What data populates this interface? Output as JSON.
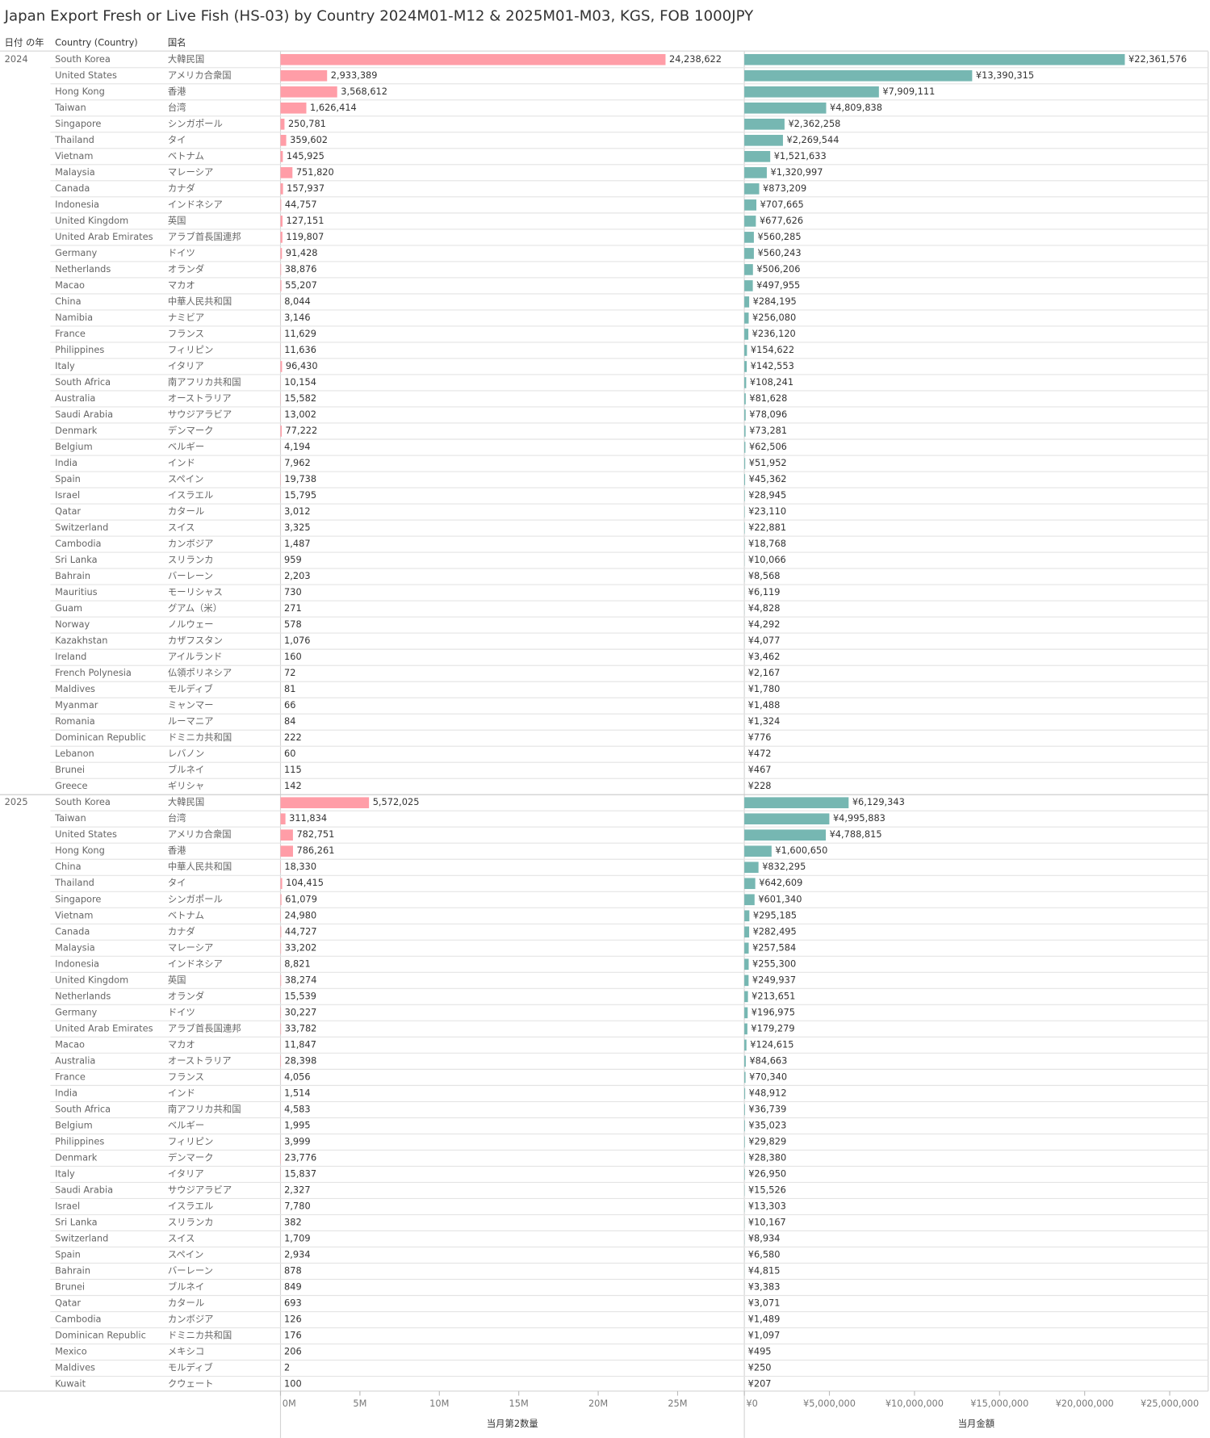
{
  "chart_data": {
    "type": "bar",
    "title": "Japan Export Fresh or Live Fish (HS-03) by Country 2024M01-M12 & 2025M01-M03, KGS, FOB 1000JPY",
    "headers": [
      "日付 の年",
      "Country (Country)",
      "国名"
    ],
    "panels": [
      {
        "title": "当月第2数量",
        "color": "#ff9da7",
        "xlim": [
          0,
          29200000
        ],
        "xticks": [
          {
            "value": 0,
            "label": "0M"
          },
          {
            "value": 5000000,
            "label": "5M"
          },
          {
            "value": 10000000,
            "label": "10M"
          },
          {
            "value": 15000000,
            "label": "15M"
          },
          {
            "value": 20000000,
            "label": "20M"
          },
          {
            "value": 25000000,
            "label": "25M"
          }
        ]
      },
      {
        "title": "当月金額",
        "color": "#76b7b2",
        "xlim": [
          0,
          27260000
        ],
        "xticks": [
          {
            "value": 0,
            "label": "¥0"
          },
          {
            "value": 5000000,
            "label": "¥5,000,000"
          },
          {
            "value": 10000000,
            "label": "¥10,000,000"
          },
          {
            "value": 15000000,
            "label": "¥15,000,000"
          },
          {
            "value": 20000000,
            "label": "¥20,000,000"
          },
          {
            "value": 25000000,
            "label": "¥25,000,000"
          }
        ]
      }
    ],
    "groups": [
      {
        "year": "2024",
        "rows": [
          {
            "country": "South Korea",
            "ja": "大韓民国",
            "qty": 24238622,
            "qty_label": "24,238,622",
            "amt": 22361576,
            "amt_label": "¥22,361,576"
          },
          {
            "country": "United States",
            "ja": "アメリカ合衆国",
            "qty": 2933389,
            "qty_label": "2,933,389",
            "amt": 13390315,
            "amt_label": "¥13,390,315"
          },
          {
            "country": "Hong Kong",
            "ja": "香港",
            "qty": 3568612,
            "qty_label": "3,568,612",
            "amt": 7909111,
            "amt_label": "¥7,909,111"
          },
          {
            "country": "Taiwan",
            "ja": "台湾",
            "qty": 1626414,
            "qty_label": "1,626,414",
            "amt": 4809838,
            "amt_label": "¥4,809,838"
          },
          {
            "country": "Singapore",
            "ja": "シンガポール",
            "qty": 250781,
            "qty_label": "250,781",
            "amt": 2362258,
            "amt_label": "¥2,362,258"
          },
          {
            "country": "Thailand",
            "ja": "タイ",
            "qty": 359602,
            "qty_label": "359,602",
            "amt": 2269544,
            "amt_label": "¥2,269,544"
          },
          {
            "country": "Vietnam",
            "ja": "ベトナム",
            "qty": 145925,
            "qty_label": "145,925",
            "amt": 1521633,
            "amt_label": "¥1,521,633"
          },
          {
            "country": "Malaysia",
            "ja": "マレーシア",
            "qty": 751820,
            "qty_label": "751,820",
            "amt": 1320997,
            "amt_label": "¥1,320,997"
          },
          {
            "country": "Canada",
            "ja": "カナダ",
            "qty": 157937,
            "qty_label": "157,937",
            "amt": 873209,
            "amt_label": "¥873,209"
          },
          {
            "country": "Indonesia",
            "ja": "インドネシア",
            "qty": 44757,
            "qty_label": "44,757",
            "amt": 707665,
            "amt_label": "¥707,665"
          },
          {
            "country": "United Kingdom",
            "ja": "英国",
            "qty": 127151,
            "qty_label": "127,151",
            "amt": 677626,
            "amt_label": "¥677,626"
          },
          {
            "country": "United Arab Emirates",
            "ja": "アラブ首長国連邦",
            "qty": 119807,
            "qty_label": "119,807",
            "amt": 560285,
            "amt_label": "¥560,285"
          },
          {
            "country": "Germany",
            "ja": "ドイツ",
            "qty": 91428,
            "qty_label": "91,428",
            "amt": 560243,
            "amt_label": "¥560,243"
          },
          {
            "country": "Netherlands",
            "ja": "オランダ",
            "qty": 38876,
            "qty_label": "38,876",
            "amt": 506206,
            "amt_label": "¥506,206"
          },
          {
            "country": "Macao",
            "ja": "マカオ",
            "qty": 55207,
            "qty_label": "55,207",
            "amt": 497955,
            "amt_label": "¥497,955"
          },
          {
            "country": "China",
            "ja": "中華人民共和国",
            "qty": 8044,
            "qty_label": "8,044",
            "amt": 284195,
            "amt_label": "¥284,195"
          },
          {
            "country": "Namibia",
            "ja": "ナミビア",
            "qty": 3146,
            "qty_label": "3,146",
            "amt": 256080,
            "amt_label": "¥256,080"
          },
          {
            "country": "France",
            "ja": "フランス",
            "qty": 11629,
            "qty_label": "11,629",
            "amt": 236120,
            "amt_label": "¥236,120"
          },
          {
            "country": "Philippines",
            "ja": "フィリピン",
            "qty": 11636,
            "qty_label": "11,636",
            "amt": 154622,
            "amt_label": "¥154,622"
          },
          {
            "country": "Italy",
            "ja": "イタリア",
            "qty": 96430,
            "qty_label": "96,430",
            "amt": 142553,
            "amt_label": "¥142,553"
          },
          {
            "country": "South Africa",
            "ja": "南アフリカ共和国",
            "qty": 10154,
            "qty_label": "10,154",
            "amt": 108241,
            "amt_label": "¥108,241"
          },
          {
            "country": "Australia",
            "ja": "オーストラリア",
            "qty": 15582,
            "qty_label": "15,582",
            "amt": 81628,
            "amt_label": "¥81,628"
          },
          {
            "country": "Saudi Arabia",
            "ja": "サウジアラビア",
            "qty": 13002,
            "qty_label": "13,002",
            "amt": 78096,
            "amt_label": "¥78,096"
          },
          {
            "country": "Denmark",
            "ja": "デンマーク",
            "qty": 77222,
            "qty_label": "77,222",
            "amt": 73281,
            "amt_label": "¥73,281"
          },
          {
            "country": "Belgium",
            "ja": "ベルギー",
            "qty": 4194,
            "qty_label": "4,194",
            "amt": 62506,
            "amt_label": "¥62,506"
          },
          {
            "country": "India",
            "ja": "インド",
            "qty": 7962,
            "qty_label": "7,962",
            "amt": 51952,
            "amt_label": "¥51,952"
          },
          {
            "country": "Spain",
            "ja": "スペイン",
            "qty": 19738,
            "qty_label": "19,738",
            "amt": 45362,
            "amt_label": "¥45,362"
          },
          {
            "country": "Israel",
            "ja": "イスラエル",
            "qty": 15795,
            "qty_label": "15,795",
            "amt": 28945,
            "amt_label": "¥28,945"
          },
          {
            "country": "Qatar",
            "ja": "カタール",
            "qty": 3012,
            "qty_label": "3,012",
            "amt": 23110,
            "amt_label": "¥23,110"
          },
          {
            "country": "Switzerland",
            "ja": "スイス",
            "qty": 3325,
            "qty_label": "3,325",
            "amt": 22881,
            "amt_label": "¥22,881"
          },
          {
            "country": "Cambodia",
            "ja": "カンボジア",
            "qty": 1487,
            "qty_label": "1,487",
            "amt": 18768,
            "amt_label": "¥18,768"
          },
          {
            "country": "Sri Lanka",
            "ja": "スリランカ",
            "qty": 959,
            "qty_label": "959",
            "amt": 10066,
            "amt_label": "¥10,066"
          },
          {
            "country": "Bahrain",
            "ja": "バーレーン",
            "qty": 2203,
            "qty_label": "2,203",
            "amt": 8568,
            "amt_label": "¥8,568"
          },
          {
            "country": "Mauritius",
            "ja": "モーリシャス",
            "qty": 730,
            "qty_label": "730",
            "amt": 6119,
            "amt_label": "¥6,119"
          },
          {
            "country": "Guam",
            "ja": "グアム（米）",
            "qty": 271,
            "qty_label": "271",
            "amt": 4828,
            "amt_label": "¥4,828"
          },
          {
            "country": "Norway",
            "ja": "ノルウェー",
            "qty": 578,
            "qty_label": "578",
            "amt": 4292,
            "amt_label": "¥4,292"
          },
          {
            "country": "Kazakhstan",
            "ja": "カザフスタン",
            "qty": 1076,
            "qty_label": "1,076",
            "amt": 4077,
            "amt_label": "¥4,077"
          },
          {
            "country": "Ireland",
            "ja": "アイルランド",
            "qty": 160,
            "qty_label": "160",
            "amt": 3462,
            "amt_label": "¥3,462"
          },
          {
            "country": "French Polynesia",
            "ja": "仏領ポリネシア",
            "qty": 72,
            "qty_label": "72",
            "amt": 2167,
            "amt_label": "¥2,167"
          },
          {
            "country": "Maldives",
            "ja": "モルディブ",
            "qty": 81,
            "qty_label": "81",
            "amt": 1780,
            "amt_label": "¥1,780"
          },
          {
            "country": "Myanmar",
            "ja": "ミャンマー",
            "qty": 66,
            "qty_label": "66",
            "amt": 1488,
            "amt_label": "¥1,488"
          },
          {
            "country": "Romania",
            "ja": "ルーマニア",
            "qty": 84,
            "qty_label": "84",
            "amt": 1324,
            "amt_label": "¥1,324"
          },
          {
            "country": "Dominican Republic",
            "ja": "ドミニカ共和国",
            "qty": 222,
            "qty_label": "222",
            "amt": 776,
            "amt_label": "¥776"
          },
          {
            "country": "Lebanon",
            "ja": "レバノン",
            "qty": 60,
            "qty_label": "60",
            "amt": 472,
            "amt_label": "¥472"
          },
          {
            "country": "Brunei",
            "ja": "ブルネイ",
            "qty": 115,
            "qty_label": "115",
            "amt": 467,
            "amt_label": "¥467"
          },
          {
            "country": "Greece",
            "ja": "ギリシャ",
            "qty": 142,
            "qty_label": "142",
            "amt": 228,
            "amt_label": "¥228"
          }
        ]
      },
      {
        "year": "2025",
        "rows": [
          {
            "country": "South Korea",
            "ja": "大韓民国",
            "qty": 5572025,
            "qty_label": "5,572,025",
            "amt": 6129343,
            "amt_label": "¥6,129,343"
          },
          {
            "country": "Taiwan",
            "ja": "台湾",
            "qty": 311834,
            "qty_label": "311,834",
            "amt": 4995883,
            "amt_label": "¥4,995,883"
          },
          {
            "country": "United States",
            "ja": "アメリカ合衆国",
            "qty": 782751,
            "qty_label": "782,751",
            "amt": 4788815,
            "amt_label": "¥4,788,815"
          },
          {
            "country": "Hong Kong",
            "ja": "香港",
            "qty": 786261,
            "qty_label": "786,261",
            "amt": 1600650,
            "amt_label": "¥1,600,650"
          },
          {
            "country": "China",
            "ja": "中華人民共和国",
            "qty": 18330,
            "qty_label": "18,330",
            "amt": 832295,
            "amt_label": "¥832,295"
          },
          {
            "country": "Thailand",
            "ja": "タイ",
            "qty": 104415,
            "qty_label": "104,415",
            "amt": 642609,
            "amt_label": "¥642,609"
          },
          {
            "country": "Singapore",
            "ja": "シンガポール",
            "qty": 61079,
            "qty_label": "61,079",
            "amt": 601340,
            "amt_label": "¥601,340"
          },
          {
            "country": "Vietnam",
            "ja": "ベトナム",
            "qty": 24980,
            "qty_label": "24,980",
            "amt": 295185,
            "amt_label": "¥295,185"
          },
          {
            "country": "Canada",
            "ja": "カナダ",
            "qty": 44727,
            "qty_label": "44,727",
            "amt": 282495,
            "amt_label": "¥282,495"
          },
          {
            "country": "Malaysia",
            "ja": "マレーシア",
            "qty": 33202,
            "qty_label": "33,202",
            "amt": 257584,
            "amt_label": "¥257,584"
          },
          {
            "country": "Indonesia",
            "ja": "インドネシア",
            "qty": 8821,
            "qty_label": "8,821",
            "amt": 255300,
            "amt_label": "¥255,300"
          },
          {
            "country": "United Kingdom",
            "ja": "英国",
            "qty": 38274,
            "qty_label": "38,274",
            "amt": 249937,
            "amt_label": "¥249,937"
          },
          {
            "country": "Netherlands",
            "ja": "オランダ",
            "qty": 15539,
            "qty_label": "15,539",
            "amt": 213651,
            "amt_label": "¥213,651"
          },
          {
            "country": "Germany",
            "ja": "ドイツ",
            "qty": 30227,
            "qty_label": "30,227",
            "amt": 196975,
            "amt_label": "¥196,975"
          },
          {
            "country": "United Arab Emirates",
            "ja": "アラブ首長国連邦",
            "qty": 33782,
            "qty_label": "33,782",
            "amt": 179279,
            "amt_label": "¥179,279"
          },
          {
            "country": "Macao",
            "ja": "マカオ",
            "qty": 11847,
            "qty_label": "11,847",
            "amt": 124615,
            "amt_label": "¥124,615"
          },
          {
            "country": "Australia",
            "ja": "オーストラリア",
            "qty": 28398,
            "qty_label": "28,398",
            "amt": 84663,
            "amt_label": "¥84,663"
          },
          {
            "country": "France",
            "ja": "フランス",
            "qty": 4056,
            "qty_label": "4,056",
            "amt": 70340,
            "amt_label": "¥70,340"
          },
          {
            "country": "India",
            "ja": "インド",
            "qty": 1514,
            "qty_label": "1,514",
            "amt": 48912,
            "amt_label": "¥48,912"
          },
          {
            "country": "South Africa",
            "ja": "南アフリカ共和国",
            "qty": 4583,
            "qty_label": "4,583",
            "amt": 36739,
            "amt_label": "¥36,739"
          },
          {
            "country": "Belgium",
            "ja": "ベルギー",
            "qty": 1995,
            "qty_label": "1,995",
            "amt": 35023,
            "amt_label": "¥35,023"
          },
          {
            "country": "Philippines",
            "ja": "フィリピン",
            "qty": 3999,
            "qty_label": "3,999",
            "amt": 29829,
            "amt_label": "¥29,829"
          },
          {
            "country": "Denmark",
            "ja": "デンマーク",
            "qty": 23776,
            "qty_label": "23,776",
            "amt": 28380,
            "amt_label": "¥28,380"
          },
          {
            "country": "Italy",
            "ja": "イタリア",
            "qty": 15837,
            "qty_label": "15,837",
            "amt": 26950,
            "amt_label": "¥26,950"
          },
          {
            "country": "Saudi Arabia",
            "ja": "サウジアラビア",
            "qty": 2327,
            "qty_label": "2,327",
            "amt": 15526,
            "amt_label": "¥15,526"
          },
          {
            "country": "Israel",
            "ja": "イスラエル",
            "qty": 7780,
            "qty_label": "7,780",
            "amt": 13303,
            "amt_label": "¥13,303"
          },
          {
            "country": "Sri Lanka",
            "ja": "スリランカ",
            "qty": 382,
            "qty_label": "382",
            "amt": 10167,
            "amt_label": "¥10,167"
          },
          {
            "country": "Switzerland",
            "ja": "スイス",
            "qty": 1709,
            "qty_label": "1,709",
            "amt": 8934,
            "amt_label": "¥8,934"
          },
          {
            "country": "Spain",
            "ja": "スペイン",
            "qty": 2934,
            "qty_label": "2,934",
            "amt": 6580,
            "amt_label": "¥6,580"
          },
          {
            "country": "Bahrain",
            "ja": "バーレーン",
            "qty": 878,
            "qty_label": "878",
            "amt": 4815,
            "amt_label": "¥4,815"
          },
          {
            "country": "Brunei",
            "ja": "ブルネイ",
            "qty": 849,
            "qty_label": "849",
            "amt": 3383,
            "amt_label": "¥3,383"
          },
          {
            "country": "Qatar",
            "ja": "カタール",
            "qty": 693,
            "qty_label": "693",
            "amt": 3071,
            "amt_label": "¥3,071"
          },
          {
            "country": "Cambodia",
            "ja": "カンボジア",
            "qty": 126,
            "qty_label": "126",
            "amt": 1489,
            "amt_label": "¥1,489"
          },
          {
            "country": "Dominican Republic",
            "ja": "ドミニカ共和国",
            "qty": 176,
            "qty_label": "176",
            "amt": 1097,
            "amt_label": "¥1,097"
          },
          {
            "country": "Mexico",
            "ja": "メキシコ",
            "qty": 206,
            "qty_label": "206",
            "amt": 495,
            "amt_label": "¥495"
          },
          {
            "country": "Maldives",
            "ja": "モルディブ",
            "qty": 2,
            "qty_label": "2",
            "amt": 250,
            "amt_label": "¥250"
          },
          {
            "country": "Kuwait",
            "ja": "クウェート",
            "qty": 100,
            "qty_label": "100",
            "amt": 207,
            "amt_label": "¥207"
          }
        ]
      }
    ]
  }
}
